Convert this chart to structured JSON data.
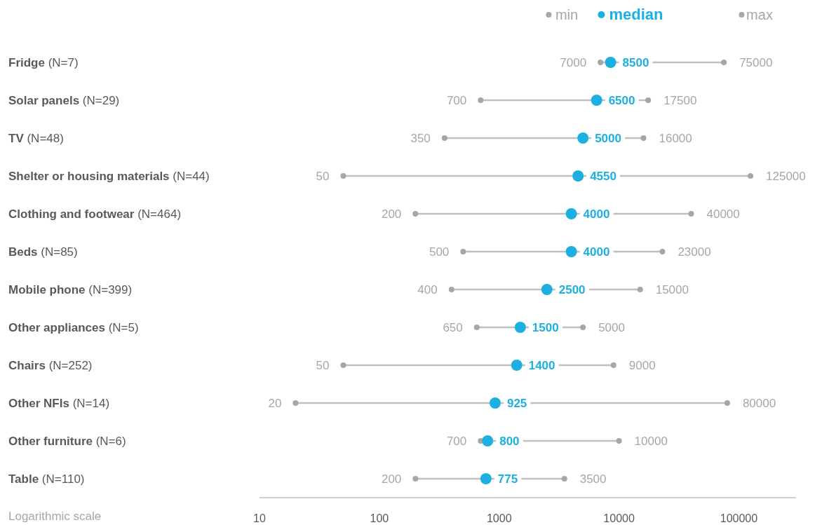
{
  "chart_data": {
    "type": "scatter",
    "orientation": "horizontal",
    "log": "x",
    "grid": false,
    "legend": "top right",
    "marker": "circle",
    "data_labels": true,
    "categories": [
      "Fridge (N=7)",
      "Solar panels (N=29)",
      "TV (N=48)",
      "Shelter or housing materials (N=44)",
      "Clothing and footwear (N=464)",
      "Beds (N=85)",
      "Mobile phone (N=399)",
      "Other appliances (N=5)",
      "Chairs (N=252)",
      "Other NFIs (N=14)",
      "Other furniture (N=6)",
      "Table (N=110)"
    ],
    "series": [
      {
        "name": "min",
        "color": "#a6a6a6",
        "values": [
          7000,
          700,
          350,
          50,
          200,
          500,
          400,
          650,
          50,
          20,
          700,
          200
        ]
      },
      {
        "name": "median",
        "color": "#1cb0e2",
        "values": [
          8500,
          6500,
          5000,
          4550,
          4000,
          4000,
          2500,
          1500,
          1400,
          925,
          800,
          775
        ]
      },
      {
        "name": "max",
        "color": "#a6a6a6",
        "values": [
          75000,
          17500,
          16000,
          125000,
          40000,
          23000,
          15000,
          5000,
          9000,
          80000,
          10000,
          3500
        ]
      }
    ],
    "xlim": [
      10,
      300000
    ],
    "xticks": [
      10,
      100,
      1000,
      10000,
      100000
    ],
    "annotations": [
      "Logarithmic scale"
    ]
  }
}
